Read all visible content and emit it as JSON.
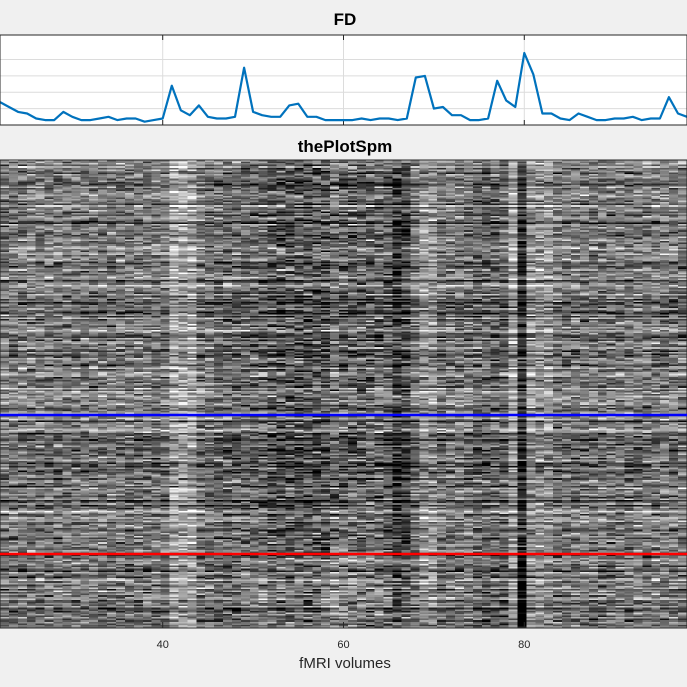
{
  "chart_data": [
    {
      "type": "line",
      "title": "FD",
      "xlim": [
        22,
        98
      ],
      "ylim": [
        0,
        0.55
      ],
      "grid": true,
      "color": "#0072bd",
      "x": [
        22,
        23,
        24,
        25,
        26,
        27,
        28,
        29,
        30,
        31,
        32,
        33,
        34,
        35,
        36,
        37,
        38,
        39,
        40,
        41,
        42,
        43,
        44,
        45,
        46,
        47,
        48,
        49,
        50,
        51,
        52,
        53,
        54,
        55,
        56,
        57,
        58,
        59,
        60,
        61,
        62,
        63,
        64,
        65,
        66,
        67,
        68,
        69,
        70,
        71,
        72,
        73,
        74,
        75,
        76,
        77,
        78,
        79,
        80,
        81,
        82,
        83,
        84,
        85,
        86,
        87,
        88,
        89,
        90,
        91,
        92,
        93,
        94,
        95,
        96,
        97,
        98
      ],
      "values": [
        0.14,
        0.11,
        0.08,
        0.07,
        0.04,
        0.03,
        0.03,
        0.08,
        0.05,
        0.03,
        0.03,
        0.04,
        0.05,
        0.03,
        0.04,
        0.04,
        0.02,
        0.03,
        0.04,
        0.24,
        0.09,
        0.06,
        0.12,
        0.05,
        0.04,
        0.04,
        0.05,
        0.35,
        0.08,
        0.06,
        0.05,
        0.05,
        0.12,
        0.13,
        0.05,
        0.05,
        0.03,
        0.03,
        0.03,
        0.03,
        0.04,
        0.03,
        0.04,
        0.04,
        0.03,
        0.04,
        0.29,
        0.3,
        0.1,
        0.11,
        0.06,
        0.06,
        0.03,
        0.03,
        0.04,
        0.27,
        0.15,
        0.11,
        0.44,
        0.31,
        0.07,
        0.07,
        0.04,
        0.03,
        0.07,
        0.05,
        0.03,
        0.03,
        0.04,
        0.04,
        0.05,
        0.03,
        0.04,
        0.04,
        0.17,
        0.07,
        0.05
      ]
    },
    {
      "type": "heatmap",
      "title": "thePlotSpm",
      "xlabel": "fMRI volumes",
      "xlim": [
        22,
        98
      ],
      "xticks": [
        "40",
        "60",
        "80"
      ],
      "xtick_values": [
        40,
        60,
        80
      ],
      "colormap": "gray",
      "divider_lines": [
        {
          "color": "#0000ff"
        },
        {
          "color": "#ff0000"
        }
      ]
    }
  ]
}
